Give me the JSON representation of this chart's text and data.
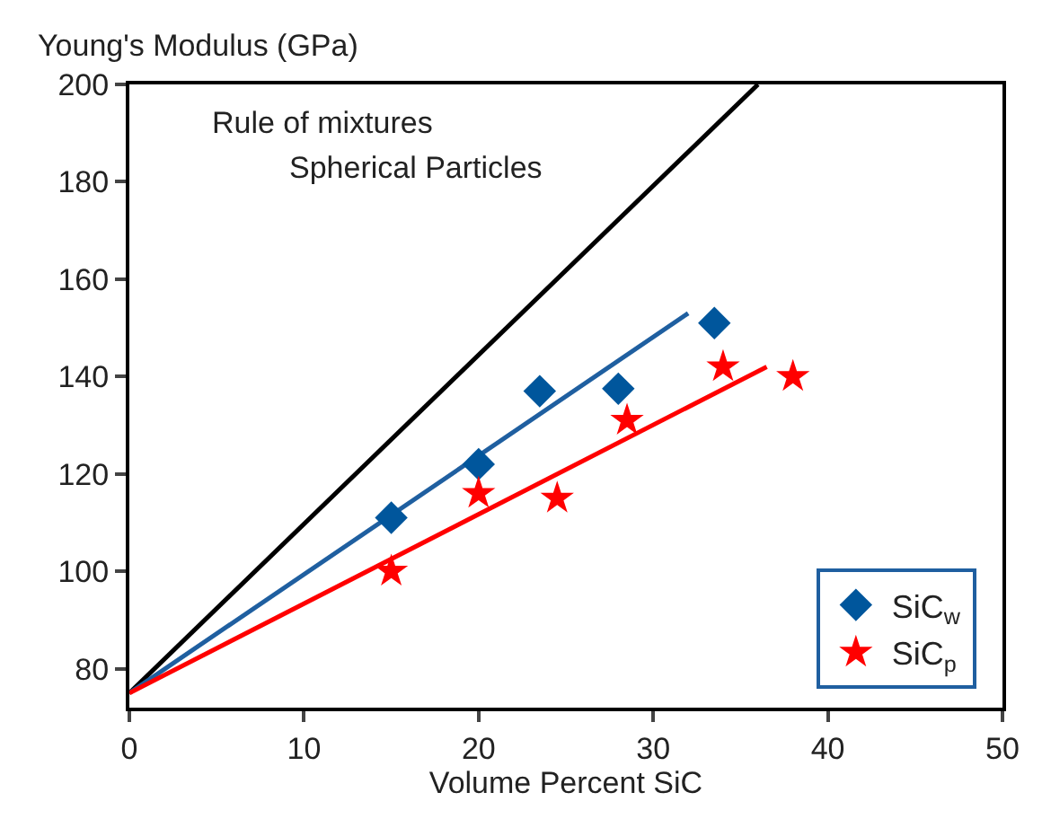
{
  "chart_data": {
    "type": "scatter",
    "ylabel": "Young's Modulus (GPa)",
    "xlabel": "Volume Percent SiC",
    "xlim": [
      0,
      50
    ],
    "xticks": [
      0,
      10,
      20,
      30,
      40,
      50
    ],
    "ylim": [
      72,
      200
    ],
    "yticks": [
      80,
      100,
      120,
      140,
      160,
      180,
      200
    ],
    "legend": "bottom right",
    "annotations": [
      "Rule of mixtures",
      "Spherical Particles"
    ],
    "series": [
      {
        "type": "line",
        "color": "#000000",
        "marker": "none",
        "x": [
          0,
          36
        ],
        "values": [
          75,
          200
        ]
      },
      {
        "type": "line",
        "color": "#1f5fa0",
        "marker": "none",
        "x": [
          0,
          32
        ],
        "values": [
          75,
          153
        ]
      },
      {
        "type": "line",
        "color": "#ff0000",
        "marker": "none",
        "x": [
          0,
          36.5
        ],
        "values": [
          75,
          142
        ]
      },
      {
        "name": "SiC$_{w}$",
        "color": "#00569c",
        "marker": "diamond",
        "x": [
          15,
          20,
          23.5,
          28,
          33.5
        ],
        "values": [
          111,
          122,
          137,
          137.5,
          151
        ]
      },
      {
        "name": "SiC$_{p}$",
        "color": "#ff0000",
        "marker": "star",
        "x": [
          15,
          20,
          24.5,
          28.5,
          34,
          38
        ],
        "values": [
          100,
          116,
          115,
          131,
          142,
          140
        ]
      }
    ]
  }
}
